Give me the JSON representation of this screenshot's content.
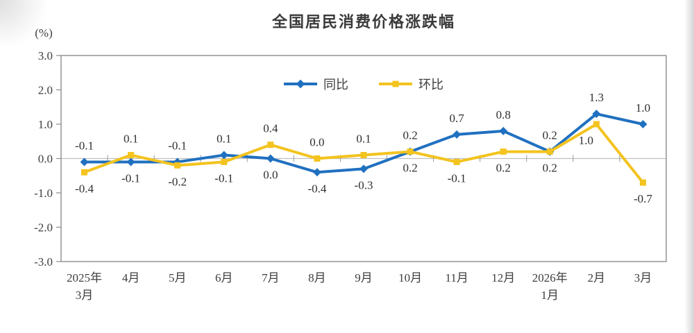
{
  "title": "全国居民消费价格涨跌幅",
  "unit_label": "(%)",
  "chart_data": {
    "type": "line",
    "title": "全国居民消费价格涨跌幅",
    "ylabel": "(%)",
    "ylim": [
      -3.0,
      3.0
    ],
    "yticks": [
      "3.0",
      "2.0",
      "1.0",
      "0.0",
      "-1.0",
      "-2.0",
      "-3.0"
    ],
    "grid": "zero-line-only",
    "legend_position": "top-center",
    "categories": [
      [
        "2025年",
        "3月"
      ],
      [
        "4月"
      ],
      [
        "5月"
      ],
      [
        "6月"
      ],
      [
        "7月"
      ],
      [
        "8月"
      ],
      [
        "9月"
      ],
      [
        "10月"
      ],
      [
        "11月"
      ],
      [
        "12月"
      ],
      [
        "2026年",
        "1月"
      ],
      [
        "2月"
      ],
      [
        "3月"
      ]
    ],
    "series": [
      {
        "name": "同比",
        "color": "#2070c0",
        "marker": "diamond",
        "values": [
          -0.1,
          -0.1,
          -0.1,
          0.1,
          0.0,
          -0.4,
          -0.3,
          0.2,
          0.7,
          0.8,
          0.2,
          1.3,
          1.0
        ]
      },
      {
        "name": "环比",
        "color": "#f3c31f",
        "marker": "square",
        "values": [
          -0.4,
          0.1,
          -0.2,
          -0.1,
          0.4,
          0.0,
          0.1,
          0.2,
          -0.1,
          0.2,
          0.2,
          1.0,
          -0.7
        ]
      }
    ]
  },
  "style_colors": {
    "plot_border": "#8c8c8c",
    "zero_line": "#bfbfbf",
    "tick": "#9a9a9a",
    "axis_text": "#3e3e3e",
    "label_text": "#2f2f2f"
  }
}
